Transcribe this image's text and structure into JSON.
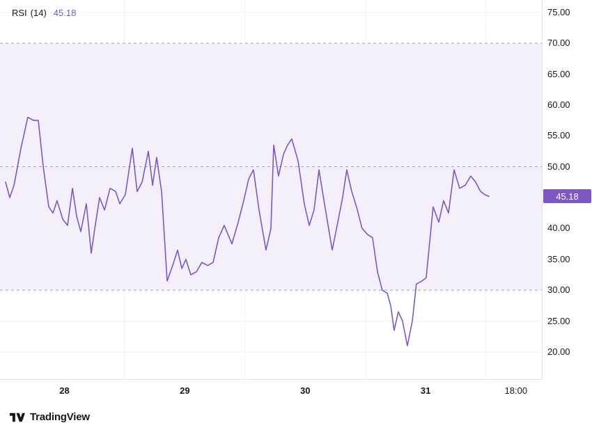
{
  "legend": {
    "name": "RSI",
    "params": "(14)",
    "value": "45.18"
  },
  "branding": {
    "label": "TradingView"
  },
  "colors": {
    "line": "#7e57c2",
    "band_fill": "rgba(126,87,194,0.09)",
    "dashed": "rgba(120,123,134,0.65)",
    "grid": "#f0f3fa",
    "text": "#131722",
    "badge_bg": "#7e57c2",
    "badge_text": "#ffffff",
    "axis_border": "#e0e3eb"
  },
  "chart_data": {
    "type": "line",
    "title": "RSI (14)",
    "ylabel": "RSI",
    "legend_position": "top-left",
    "grid": true,
    "ylim": [
      15.6,
      77.0
    ],
    "y_ticks": [
      20,
      25,
      30,
      35,
      40,
      45,
      50,
      55,
      60,
      65,
      70,
      75
    ],
    "dashed_levels": [
      30,
      50,
      70
    ],
    "band": [
      30,
      70
    ],
    "xlim": [
      27.465,
      31.965
    ],
    "x_ticks": [
      {
        "label": "28",
        "x": 28,
        "bold": true
      },
      {
        "label": "29",
        "x": 29,
        "bold": true
      },
      {
        "label": "30",
        "x": 30,
        "bold": true
      },
      {
        "label": "31",
        "x": 31,
        "bold": true
      },
      {
        "label": "18:00",
        "x": 31.75,
        "bold": false
      }
    ],
    "x_gridlines": [
      28.5,
      29.5,
      30.5,
      31.5
    ],
    "current_value": 45.18,
    "series": [
      {
        "name": "RSI",
        "color": "#7e57c2",
        "x": [
          27.511,
          27.546,
          27.581,
          27.639,
          27.696,
          27.743,
          27.783,
          27.824,
          27.87,
          27.905,
          27.939,
          27.986,
          28.026,
          28.067,
          28.101,
          28.136,
          28.182,
          28.223,
          28.252,
          28.292,
          28.333,
          28.379,
          28.425,
          28.46,
          28.506,
          28.564,
          28.604,
          28.645,
          28.697,
          28.732,
          28.766,
          28.807,
          28.853,
          28.899,
          28.94,
          28.975,
          29.009,
          29.05,
          29.096,
          29.142,
          29.189,
          29.235,
          29.281,
          29.327,
          29.391,
          29.443,
          29.489,
          29.53,
          29.57,
          29.616,
          29.674,
          29.715,
          29.738,
          29.778,
          29.819,
          29.853,
          29.888,
          29.94,
          29.992,
          30.033,
          30.073,
          30.114,
          30.16,
          30.224,
          30.27,
          30.31,
          30.345,
          30.386,
          30.426,
          30.472,
          30.519,
          30.559,
          30.6,
          30.64,
          30.681,
          30.71,
          30.738,
          30.773,
          30.808,
          30.848,
          30.889,
          30.923,
          30.97,
          31.004,
          31.062,
          31.109,
          31.149,
          31.19,
          31.236,
          31.282,
          31.328,
          31.375,
          31.415,
          31.456,
          31.49,
          31.525
        ],
        "values": [
          47.5,
          45.0,
          47.0,
          53.0,
          58.0,
          57.5,
          57.5,
          50.0,
          43.5,
          42.5,
          44.5,
          41.5,
          40.5,
          46.5,
          42.0,
          39.5,
          44.0,
          36.0,
          40.0,
          45.0,
          43.0,
          46.5,
          46.0,
          44.0,
          45.5,
          53.0,
          46.0,
          47.5,
          52.5,
          47.0,
          51.5,
          46.0,
          31.5,
          34.0,
          36.5,
          33.5,
          35.0,
          32.5,
          33.0,
          34.5,
          34.0,
          34.5,
          38.5,
          40.5,
          37.5,
          41.0,
          44.5,
          48.0,
          49.5,
          43.0,
          36.5,
          40.0,
          53.5,
          48.5,
          52.0,
          53.5,
          54.5,
          51.0,
          44.0,
          40.5,
          43.0,
          49.5,
          44.0,
          36.5,
          41.0,
          45.0,
          49.5,
          46.0,
          43.5,
          40.0,
          39.0,
          38.5,
          33.0,
          30.0,
          29.5,
          27.5,
          23.5,
          26.5,
          25.0,
          21.0,
          25.0,
          31.0,
          31.5,
          32.0,
          43.5,
          41.0,
          44.5,
          42.5,
          49.5,
          46.5,
          47.0,
          48.5,
          47.5,
          46.0,
          45.5,
          45.18
        ]
      }
    ]
  }
}
